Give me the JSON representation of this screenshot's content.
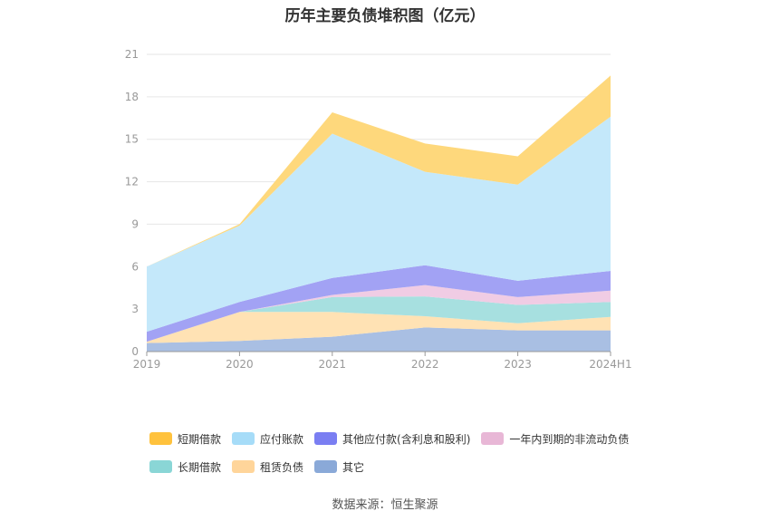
{
  "chart_data": {
    "type": "area",
    "stacked": true,
    "title": "历年主要负债堆积图（亿元）",
    "x": [
      "2019",
      "2020",
      "2021",
      "2022",
      "2023",
      "2024H1"
    ],
    "ylim": [
      0,
      21
    ],
    "yticks": [
      0,
      3,
      6,
      9,
      12,
      15,
      18,
      21
    ],
    "grid": true,
    "legend_position": "bottom",
    "series": [
      {
        "name": "其它",
        "color": "#a9bfe3",
        "values": [
          0.6,
          0.75,
          1.05,
          1.7,
          1.5,
          1.5
        ]
      },
      {
        "name": "租赁负债",
        "color": "#ffe2b4",
        "values": [
          0.1,
          2.05,
          1.75,
          0.8,
          0.5,
          0.95
        ]
      },
      {
        "name": "长期借款",
        "color": "#a7e0e0",
        "values": [
          0,
          0,
          1.05,
          1.4,
          1.3,
          1.05
        ]
      },
      {
        "name": "一年内到期的非流动负债",
        "color": "#f0cce4",
        "values": [
          0,
          0,
          0.15,
          0.8,
          0.55,
          0.8
        ]
      },
      {
        "name": "其他应付款(含利息和股利)",
        "color": "#a2a2f4",
        "values": [
          0.7,
          0.7,
          1.2,
          1.4,
          1.15,
          1.4
        ]
      },
      {
        "name": "应付账款",
        "color": "#c4e8fa",
        "values": [
          4.6,
          5.4,
          10.2,
          6.6,
          6.8,
          10.9
        ]
      },
      {
        "name": "短期借款",
        "color": "#fed87c",
        "values": [
          0,
          0.1,
          1.5,
          2.0,
          2.0,
          2.9
        ]
      }
    ]
  },
  "legend": {
    "row1": [
      {
        "label": "短期借款",
        "color": "#ffc23d"
      },
      {
        "label": "应付账款",
        "color": "#a6dcf8"
      },
      {
        "label": "其他应付款(含利息和股利)",
        "color": "#7a7ef2"
      },
      {
        "label": "一年内到期的非流动负债",
        "color": "#e8b7d6"
      }
    ],
    "row2": [
      {
        "label": "长期借款",
        "color": "#8ad6d6"
      },
      {
        "label": "租赁负债",
        "color": "#ffd59a"
      },
      {
        "label": "其它",
        "color": "#8aa9d8"
      }
    ]
  },
  "source": "数据来源：恒生聚源"
}
